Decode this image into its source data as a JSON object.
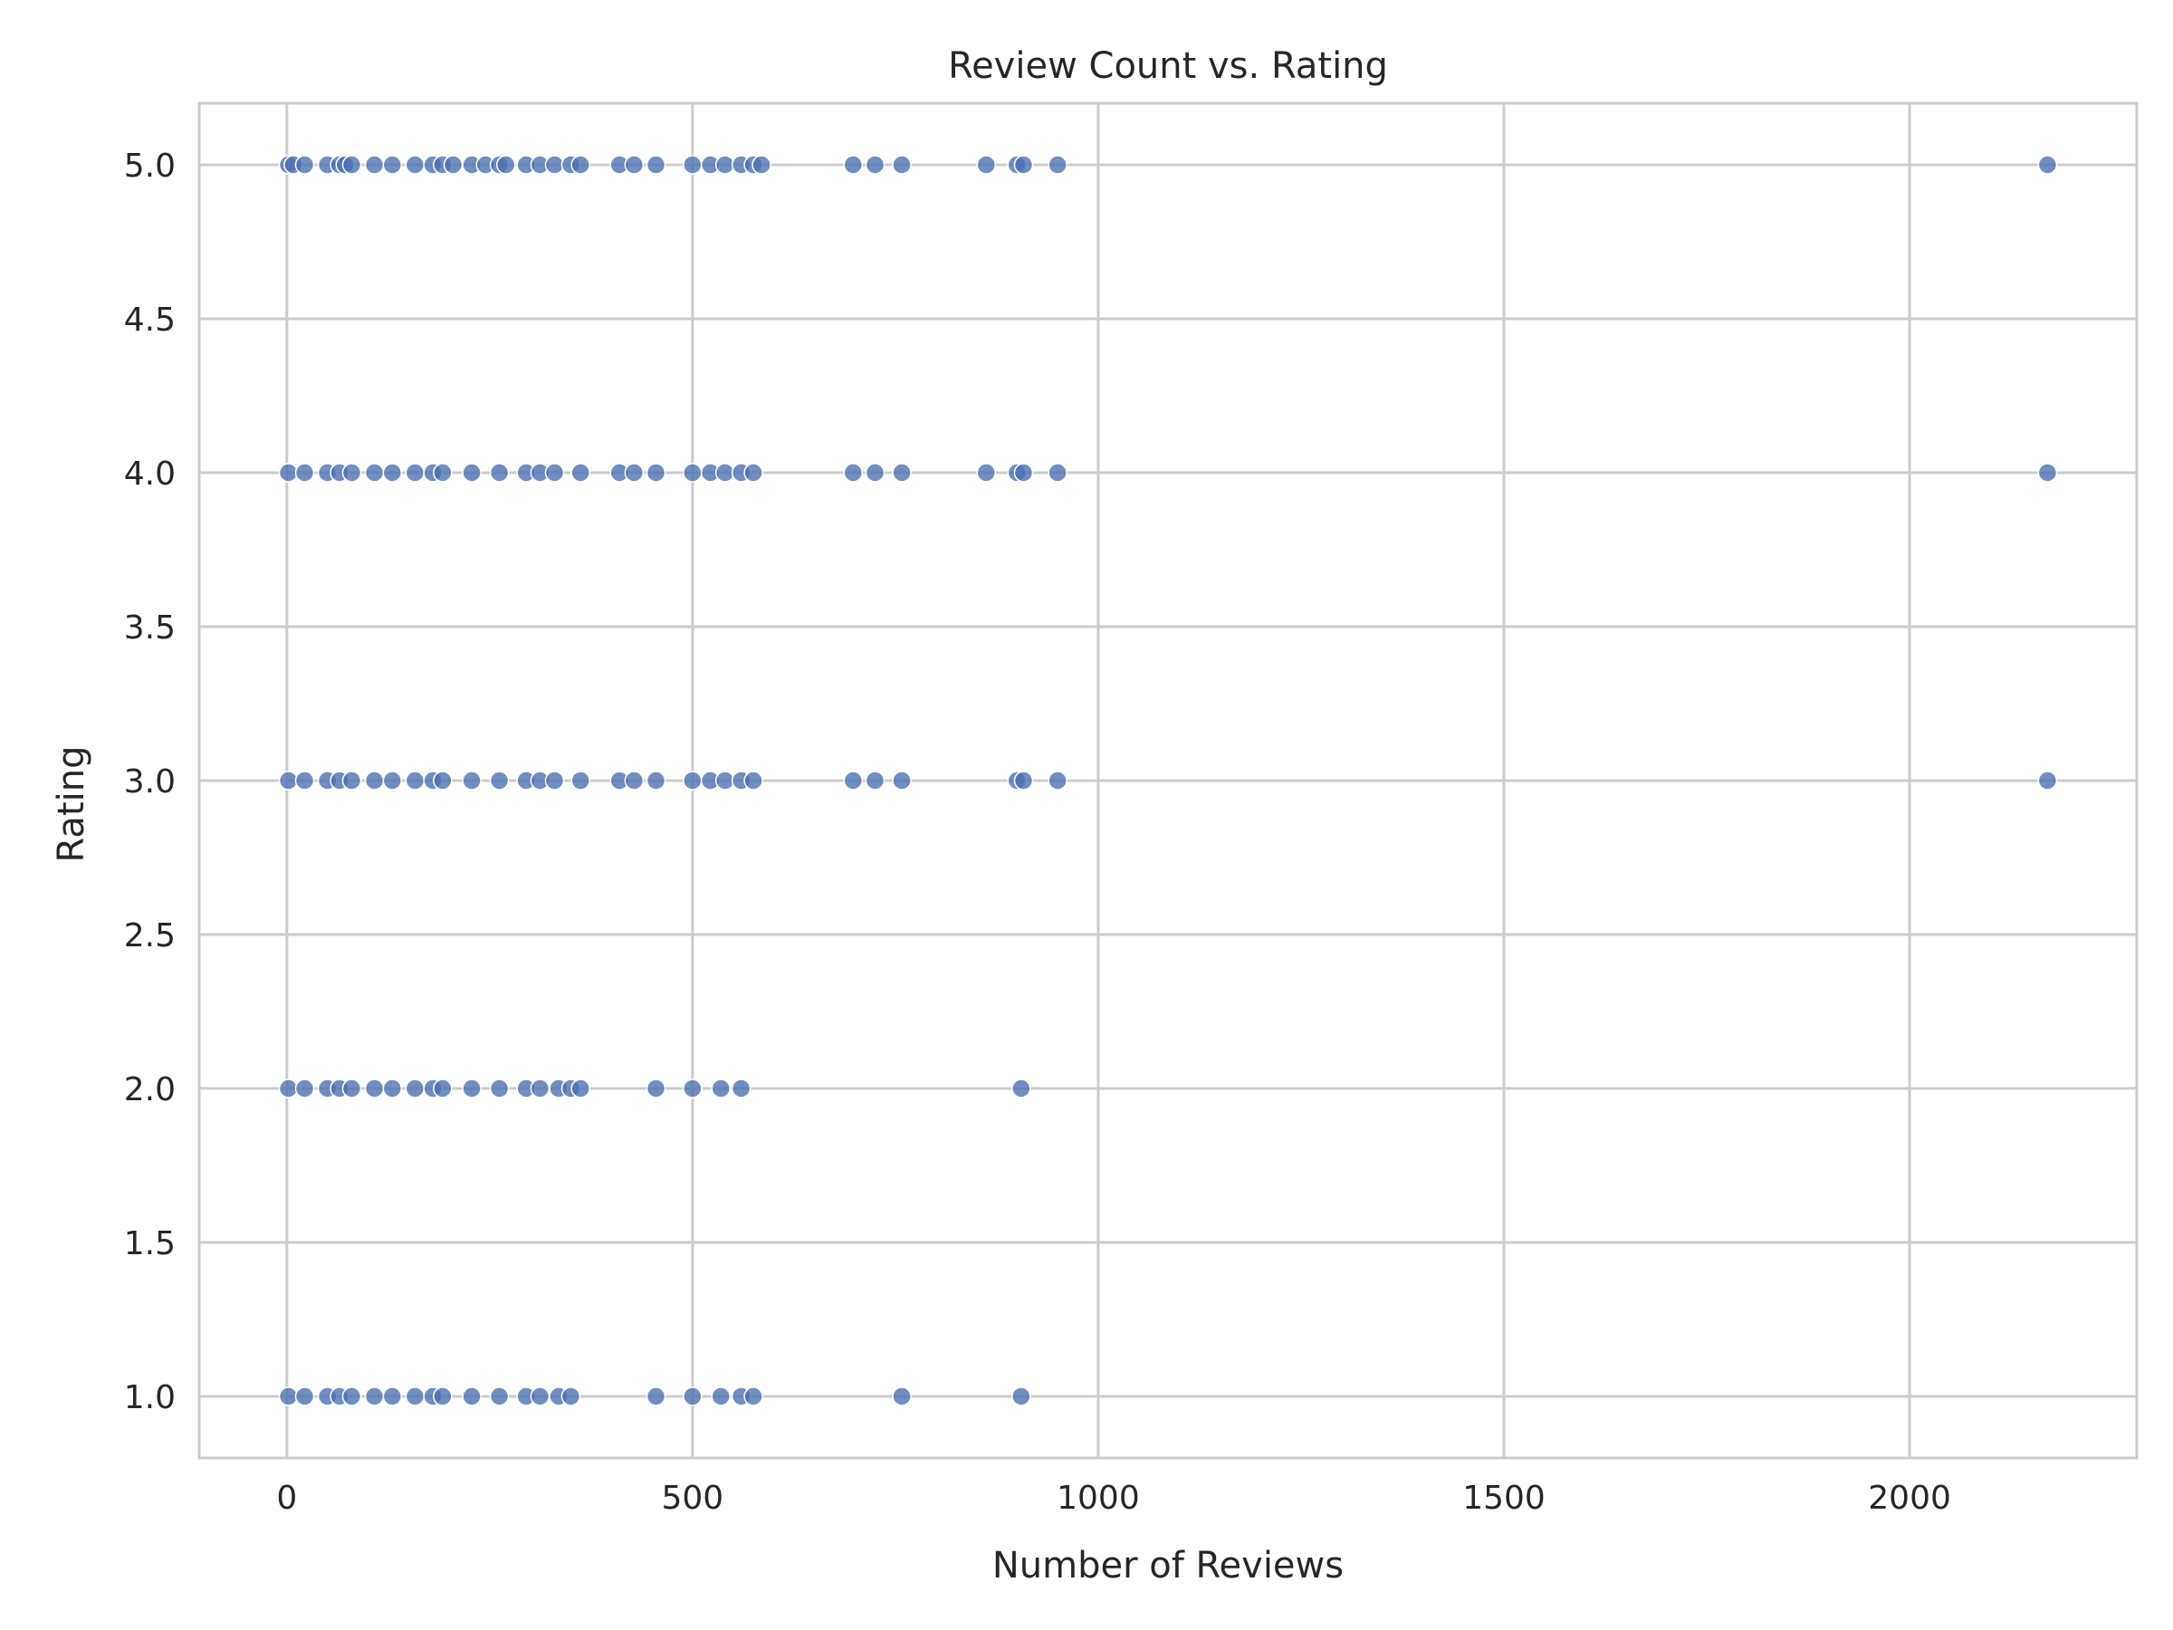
{
  "chart_data": {
    "type": "scatter",
    "title": "Review Count vs. Rating",
    "xlabel": "Number of Reviews",
    "ylabel": "Rating",
    "xlim": [
      -108,
      2280
    ],
    "ylim": [
      0.8,
      5.2
    ],
    "x_ticks": [
      0,
      500,
      1000,
      1500,
      2000
    ],
    "y_ticks": [
      1.0,
      1.5,
      2.0,
      2.5,
      3.0,
      3.5,
      4.0,
      4.5,
      5.0
    ],
    "x_tick_labels": [
      "0",
      "500",
      "1000",
      "1500",
      "2000"
    ],
    "y_tick_labels": [
      "1.0",
      "1.5",
      "2.0",
      "2.5",
      "3.0",
      "3.5",
      "4.0",
      "4.5",
      "5.0"
    ],
    "grid": true,
    "legend": "none",
    "marker_color": "#4c72b0",
    "marker_edge_color": "#ffffff",
    "series": [
      {
        "points": [
          {
            "x": 2,
            "y": 5
          },
          {
            "x": 8,
            "y": 5
          },
          {
            "x": 22,
            "y": 5
          },
          {
            "x": 50,
            "y": 5
          },
          {
            "x": 65,
            "y": 5
          },
          {
            "x": 72,
            "y": 5
          },
          {
            "x": 80,
            "y": 5
          },
          {
            "x": 108,
            "y": 5
          },
          {
            "x": 130,
            "y": 5
          },
          {
            "x": 158,
            "y": 5
          },
          {
            "x": 180,
            "y": 5
          },
          {
            "x": 192,
            "y": 5
          },
          {
            "x": 205,
            "y": 5
          },
          {
            "x": 228,
            "y": 5
          },
          {
            "x": 245,
            "y": 5
          },
          {
            "x": 262,
            "y": 5
          },
          {
            "x": 270,
            "y": 5
          },
          {
            "x": 295,
            "y": 5
          },
          {
            "x": 312,
            "y": 5
          },
          {
            "x": 330,
            "y": 5
          },
          {
            "x": 350,
            "y": 5
          },
          {
            "x": 362,
            "y": 5
          },
          {
            "x": 410,
            "y": 5
          },
          {
            "x": 428,
            "y": 5
          },
          {
            "x": 455,
            "y": 5
          },
          {
            "x": 500,
            "y": 5
          },
          {
            "x": 522,
            "y": 5
          },
          {
            "x": 540,
            "y": 5
          },
          {
            "x": 560,
            "y": 5
          },
          {
            "x": 575,
            "y": 5
          },
          {
            "x": 585,
            "y": 5
          },
          {
            "x": 698,
            "y": 5
          },
          {
            "x": 725,
            "y": 5
          },
          {
            "x": 758,
            "y": 5
          },
          {
            "x": 862,
            "y": 5
          },
          {
            "x": 900,
            "y": 5
          },
          {
            "x": 908,
            "y": 5
          },
          {
            "x": 950,
            "y": 5
          },
          {
            "x": 2170,
            "y": 5
          },
          {
            "x": 2,
            "y": 4
          },
          {
            "x": 22,
            "y": 4
          },
          {
            "x": 50,
            "y": 4
          },
          {
            "x": 65,
            "y": 4
          },
          {
            "x": 80,
            "y": 4
          },
          {
            "x": 108,
            "y": 4
          },
          {
            "x": 130,
            "y": 4
          },
          {
            "x": 158,
            "y": 4
          },
          {
            "x": 180,
            "y": 4
          },
          {
            "x": 192,
            "y": 4
          },
          {
            "x": 228,
            "y": 4
          },
          {
            "x": 262,
            "y": 4
          },
          {
            "x": 295,
            "y": 4
          },
          {
            "x": 312,
            "y": 4
          },
          {
            "x": 330,
            "y": 4
          },
          {
            "x": 362,
            "y": 4
          },
          {
            "x": 410,
            "y": 4
          },
          {
            "x": 428,
            "y": 4
          },
          {
            "x": 455,
            "y": 4
          },
          {
            "x": 500,
            "y": 4
          },
          {
            "x": 522,
            "y": 4
          },
          {
            "x": 540,
            "y": 4
          },
          {
            "x": 560,
            "y": 4
          },
          {
            "x": 575,
            "y": 4
          },
          {
            "x": 698,
            "y": 4
          },
          {
            "x": 725,
            "y": 4
          },
          {
            "x": 758,
            "y": 4
          },
          {
            "x": 862,
            "y": 4
          },
          {
            "x": 900,
            "y": 4
          },
          {
            "x": 908,
            "y": 4
          },
          {
            "x": 950,
            "y": 4
          },
          {
            "x": 2170,
            "y": 4
          },
          {
            "x": 2,
            "y": 3
          },
          {
            "x": 22,
            "y": 3
          },
          {
            "x": 50,
            "y": 3
          },
          {
            "x": 65,
            "y": 3
          },
          {
            "x": 80,
            "y": 3
          },
          {
            "x": 108,
            "y": 3
          },
          {
            "x": 130,
            "y": 3
          },
          {
            "x": 158,
            "y": 3
          },
          {
            "x": 180,
            "y": 3
          },
          {
            "x": 192,
            "y": 3
          },
          {
            "x": 228,
            "y": 3
          },
          {
            "x": 262,
            "y": 3
          },
          {
            "x": 295,
            "y": 3
          },
          {
            "x": 312,
            "y": 3
          },
          {
            "x": 330,
            "y": 3
          },
          {
            "x": 362,
            "y": 3
          },
          {
            "x": 410,
            "y": 3
          },
          {
            "x": 428,
            "y": 3
          },
          {
            "x": 455,
            "y": 3
          },
          {
            "x": 500,
            "y": 3
          },
          {
            "x": 522,
            "y": 3
          },
          {
            "x": 540,
            "y": 3
          },
          {
            "x": 560,
            "y": 3
          },
          {
            "x": 575,
            "y": 3
          },
          {
            "x": 698,
            "y": 3
          },
          {
            "x": 725,
            "y": 3
          },
          {
            "x": 758,
            "y": 3
          },
          {
            "x": 900,
            "y": 3
          },
          {
            "x": 908,
            "y": 3
          },
          {
            "x": 950,
            "y": 3
          },
          {
            "x": 2170,
            "y": 3
          },
          {
            "x": 2,
            "y": 2
          },
          {
            "x": 22,
            "y": 2
          },
          {
            "x": 50,
            "y": 2
          },
          {
            "x": 65,
            "y": 2
          },
          {
            "x": 80,
            "y": 2
          },
          {
            "x": 108,
            "y": 2
          },
          {
            "x": 130,
            "y": 2
          },
          {
            "x": 158,
            "y": 2
          },
          {
            "x": 180,
            "y": 2
          },
          {
            "x": 192,
            "y": 2
          },
          {
            "x": 228,
            "y": 2
          },
          {
            "x": 262,
            "y": 2
          },
          {
            "x": 295,
            "y": 2
          },
          {
            "x": 312,
            "y": 2
          },
          {
            "x": 335,
            "y": 2
          },
          {
            "x": 350,
            "y": 2
          },
          {
            "x": 362,
            "y": 2
          },
          {
            "x": 455,
            "y": 2
          },
          {
            "x": 500,
            "y": 2
          },
          {
            "x": 535,
            "y": 2
          },
          {
            "x": 560,
            "y": 2
          },
          {
            "x": 905,
            "y": 2
          },
          {
            "x": 2,
            "y": 1
          },
          {
            "x": 22,
            "y": 1
          },
          {
            "x": 50,
            "y": 1
          },
          {
            "x": 65,
            "y": 1
          },
          {
            "x": 80,
            "y": 1
          },
          {
            "x": 108,
            "y": 1
          },
          {
            "x": 130,
            "y": 1
          },
          {
            "x": 158,
            "y": 1
          },
          {
            "x": 180,
            "y": 1
          },
          {
            "x": 192,
            "y": 1
          },
          {
            "x": 228,
            "y": 1
          },
          {
            "x": 262,
            "y": 1
          },
          {
            "x": 295,
            "y": 1
          },
          {
            "x": 312,
            "y": 1
          },
          {
            "x": 335,
            "y": 1
          },
          {
            "x": 350,
            "y": 1
          },
          {
            "x": 455,
            "y": 1
          },
          {
            "x": 500,
            "y": 1
          },
          {
            "x": 535,
            "y": 1
          },
          {
            "x": 560,
            "y": 1
          },
          {
            "x": 575,
            "y": 1
          },
          {
            "x": 758,
            "y": 1
          },
          {
            "x": 905,
            "y": 1
          }
        ]
      }
    ]
  }
}
